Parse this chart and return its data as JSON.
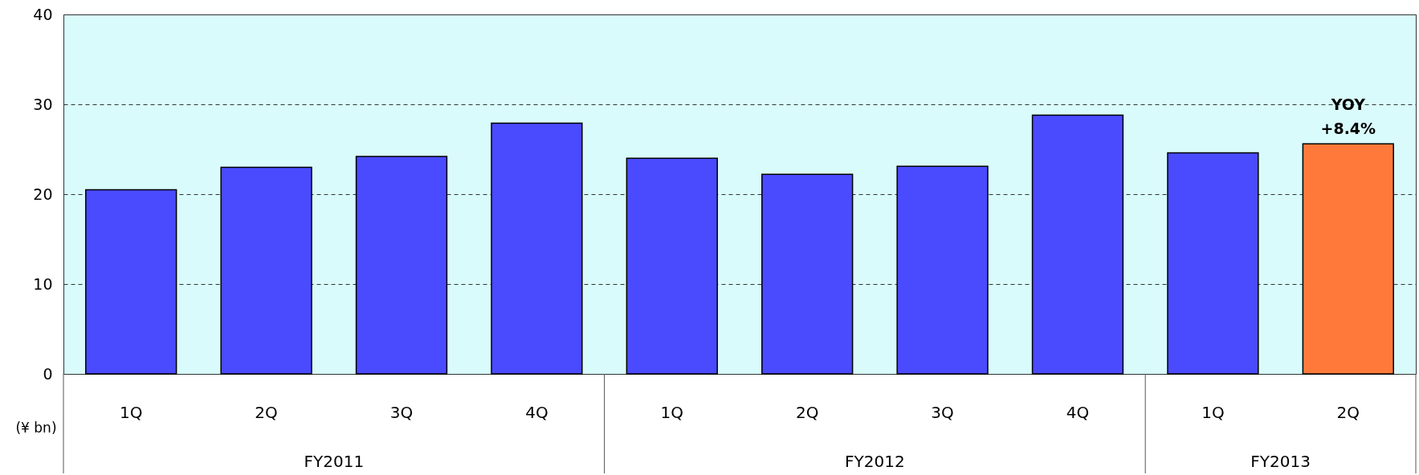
{
  "chart_data": {
    "type": "bar",
    "ylabel": "(¥ bn)",
    "categories": [
      "1Q",
      "2Q",
      "3Q",
      "4Q",
      "1Q",
      "2Q",
      "3Q",
      "4Q",
      "1Q",
      "2Q"
    ],
    "values": [
      20.5,
      23.0,
      24.2,
      27.9,
      24.0,
      22.2,
      23.1,
      28.8,
      24.6,
      25.6
    ],
    "colors": [
      "#4a4aff",
      "#4a4aff",
      "#4a4aff",
      "#4a4aff",
      "#4a4aff",
      "#4a4aff",
      "#4a4aff",
      "#4a4aff",
      "#4a4aff",
      "#ff7a3a"
    ],
    "ylim": [
      0,
      40
    ],
    "yticks": [
      0,
      10,
      20,
      30,
      40
    ],
    "grid": "y",
    "annotations": [
      "FY2011",
      "FY2012",
      "FY2013",
      {
        "text": "YOY\n+8.4%",
        "y": 25.6
      }
    ]
  }
}
